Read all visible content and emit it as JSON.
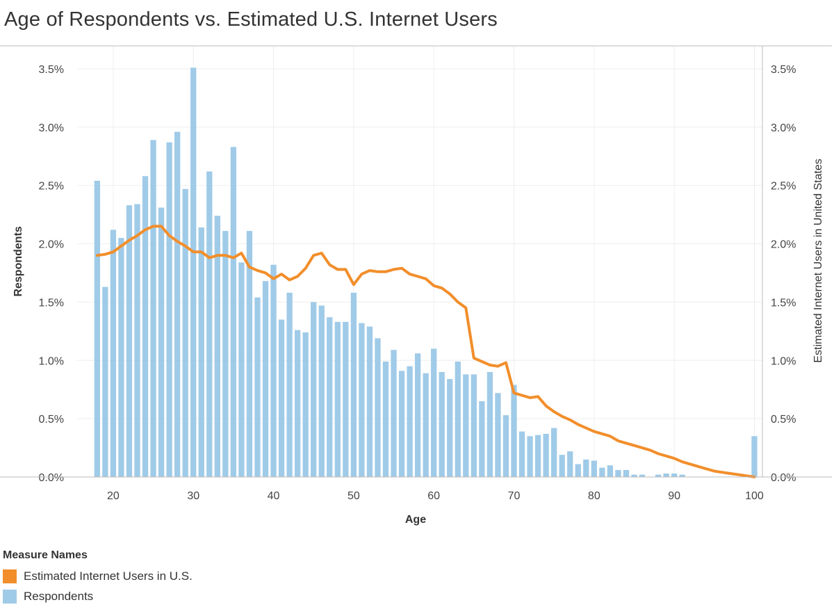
{
  "chart_data": {
    "type": "bar+line",
    "title": "Age of Respondents vs. Estimated U.S. Internet Users",
    "xlabel": "Age",
    "ylabel_left": "Respondents",
    "ylabel_right": "Estimated Internet Users in United States",
    "x_ticks": [
      20,
      30,
      40,
      50,
      60,
      70,
      80,
      90,
      100
    ],
    "y_ticks": [
      "0.0%",
      "0.5%",
      "1.0%",
      "1.5%",
      "2.0%",
      "2.5%",
      "3.0%",
      "3.5%"
    ],
    "xlim": [
      15.5,
      101
    ],
    "ylim": [
      0,
      3.5
    ],
    "grid": true,
    "legend_title": "Measure Names",
    "legend_placement": "bottom-left",
    "colors": {
      "respondents": "#a0cbe8",
      "internet_users": "#f28e2b",
      "grid": "#eeeeee",
      "axis": "#bbbbbb"
    },
    "series": [
      {
        "name": "Respondents",
        "mark": "bar",
        "x": [
          18,
          19,
          20,
          21,
          22,
          23,
          24,
          25,
          26,
          27,
          28,
          29,
          30,
          31,
          32,
          33,
          34,
          35,
          36,
          37,
          38,
          39,
          40,
          41,
          42,
          43,
          44,
          45,
          46,
          47,
          48,
          49,
          50,
          51,
          52,
          53,
          54,
          55,
          56,
          57,
          58,
          59,
          60,
          61,
          62,
          63,
          64,
          65,
          66,
          67,
          68,
          69,
          70,
          71,
          72,
          73,
          74,
          75,
          76,
          77,
          78,
          79,
          80,
          81,
          82,
          83,
          84,
          85,
          86,
          87,
          88,
          89,
          90,
          91,
          92,
          93,
          94,
          95,
          96,
          97,
          98,
          99,
          100
        ],
        "values": [
          2.54,
          1.63,
          2.12,
          2.05,
          2.33,
          2.34,
          2.58,
          2.89,
          2.31,
          2.87,
          2.96,
          2.47,
          3.51,
          2.14,
          2.62,
          2.24,
          2.11,
          2.83,
          1.84,
          2.11,
          1.54,
          1.68,
          1.82,
          1.35,
          1.58,
          1.26,
          1.24,
          1.5,
          1.47,
          1.37,
          1.33,
          1.33,
          1.58,
          1.32,
          1.29,
          1.19,
          0.99,
          1.09,
          0.91,
          0.95,
          1.06,
          0.89,
          1.1,
          0.9,
          0.84,
          0.99,
          0.88,
          0.88,
          0.65,
          0.9,
          0.72,
          0.53,
          0.79,
          0.39,
          0.35,
          0.36,
          0.37,
          0.42,
          0.19,
          0.22,
          0.11,
          0.15,
          0.14,
          0.08,
          0.1,
          0.06,
          0.06,
          0.02,
          0.02,
          0.0,
          0.02,
          0.03,
          0.03,
          0.02,
          0.0,
          0.0,
          0.0,
          0.0,
          0.0,
          0.0,
          0.0,
          0.0,
          0.35
        ]
      },
      {
        "name": "Estimated Internet Users in U.S.",
        "mark": "line",
        "x": [
          18,
          19,
          20,
          21,
          22,
          23,
          24,
          25,
          26,
          27,
          28,
          29,
          30,
          31,
          32,
          33,
          34,
          35,
          36,
          37,
          38,
          39,
          40,
          41,
          42,
          43,
          44,
          45,
          46,
          47,
          48,
          49,
          50,
          51,
          52,
          53,
          54,
          55,
          56,
          57,
          58,
          59,
          60,
          61,
          62,
          63,
          64,
          65,
          66,
          67,
          68,
          69,
          70,
          71,
          72,
          73,
          74,
          75,
          76,
          77,
          78,
          79,
          80,
          81,
          82,
          83,
          84,
          85,
          86,
          87,
          88,
          89,
          90,
          91,
          92,
          93,
          94,
          95,
          96,
          97,
          98,
          99,
          100
        ],
        "values": [
          1.9,
          1.91,
          1.93,
          1.98,
          2.03,
          2.07,
          2.12,
          2.15,
          2.15,
          2.07,
          2.02,
          1.98,
          1.93,
          1.93,
          1.88,
          1.9,
          1.9,
          1.88,
          1.92,
          1.8,
          1.77,
          1.75,
          1.7,
          1.74,
          1.69,
          1.72,
          1.79,
          1.9,
          1.92,
          1.82,
          1.78,
          1.78,
          1.65,
          1.74,
          1.77,
          1.76,
          1.76,
          1.78,
          1.79,
          1.74,
          1.72,
          1.7,
          1.64,
          1.62,
          1.57,
          1.5,
          1.45,
          1.02,
          0.99,
          0.96,
          0.95,
          0.98,
          0.72,
          0.7,
          0.68,
          0.69,
          0.61,
          0.56,
          0.52,
          0.49,
          0.45,
          0.42,
          0.39,
          0.37,
          0.35,
          0.31,
          0.29,
          0.27,
          0.25,
          0.23,
          0.2,
          0.18,
          0.16,
          0.13,
          0.11,
          0.09,
          0.07,
          0.05,
          0.04,
          0.03,
          0.02,
          0.01,
          0.0
        ]
      }
    ]
  }
}
